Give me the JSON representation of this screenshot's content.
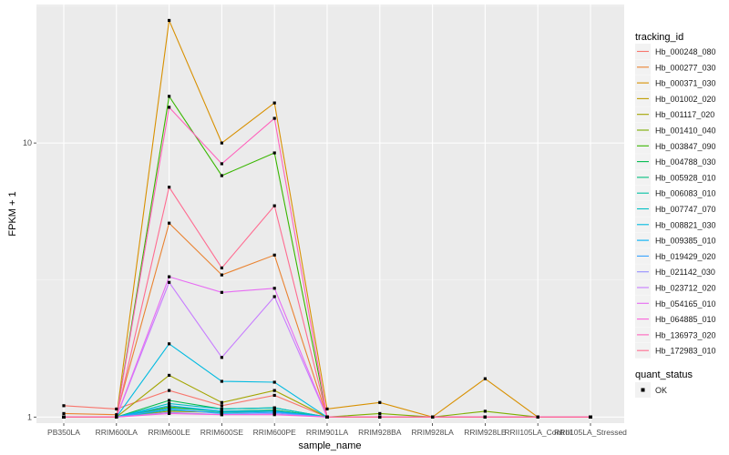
{
  "chart_data": {
    "type": "line",
    "title": "",
    "xlabel": "sample_name",
    "ylabel": "FPKM + 1",
    "y_scale": "log10",
    "ylim": [
      0.95,
      32
    ],
    "y_ticks": [
      1,
      10
    ],
    "grid": true,
    "legend_position": "right",
    "categories": [
      "PB350LA",
      "RRIM600LA",
      "RRIM600LE",
      "RRIM600SE",
      "RRIM600PE",
      "RRIM901LA",
      "RRIM928BA",
      "RRIM928LA",
      "RRIM928LE",
      "RRII105LA_Control",
      "RRII105LA_Stressed"
    ],
    "legend": {
      "tracking_title": "tracking_id",
      "status_title": "quant_status",
      "status_label": "OK"
    },
    "series": [
      {
        "name": "Hb_000248_080",
        "color": "#F8766D",
        "values": [
          1.1,
          1.07,
          1.25,
          1.1,
          1.2,
          1.0,
          1.0,
          1.0,
          1.0,
          1.0,
          1.0
        ]
      },
      {
        "name": "Hb_000277_030",
        "color": "#EA8331",
        "values": [
          1.03,
          1.02,
          5.1,
          3.3,
          3.9,
          1.0,
          1.0,
          1.0,
          1.0,
          1.0,
          1.0
        ]
      },
      {
        "name": "Hb_000371_030",
        "color": "#D89000",
        "values": [
          1.0,
          1.0,
          28,
          10,
          14,
          1.07,
          1.13,
          1.0,
          1.38,
          1.0,
          1.0
        ]
      },
      {
        "name": "Hb_001002_020",
        "color": "#C09B00",
        "values": [
          1.0,
          1.0,
          1.05,
          1.04,
          1.05,
          1.0,
          1.0,
          1.0,
          1.0,
          1.0,
          1.0
        ]
      },
      {
        "name": "Hb_001117_020",
        "color": "#A3A500",
        "values": [
          1.0,
          1.0,
          1.42,
          1.13,
          1.25,
          1.0,
          1.0,
          1.0,
          1.0,
          1.0,
          1.0
        ]
      },
      {
        "name": "Hb_001410_040",
        "color": "#7CAE00",
        "values": [
          1.0,
          1.0,
          1.09,
          1.05,
          1.06,
          1.0,
          1.03,
          1.0,
          1.05,
          1.0,
          1.0
        ]
      },
      {
        "name": "Hb_003847_090",
        "color": "#39B600",
        "values": [
          1.0,
          1.0,
          14.8,
          7.6,
          9.2,
          1.0,
          1.0,
          1.0,
          1.0,
          1.0,
          1.0
        ]
      },
      {
        "name": "Hb_004788_030",
        "color": "#00BB4E",
        "values": [
          1.0,
          1.0,
          1.15,
          1.07,
          1.08,
          1.0,
          1.0,
          1.0,
          1.0,
          1.0,
          1.0
        ]
      },
      {
        "name": "Hb_005928_010",
        "color": "#00BF7D",
        "values": [
          1.0,
          1.0,
          1.08,
          1.05,
          1.06,
          1.0,
          1.0,
          1.0,
          1.0,
          1.0,
          1.0
        ]
      },
      {
        "name": "Hb_006083_010",
        "color": "#00C1A3",
        "values": [
          1.0,
          1.0,
          1.06,
          1.04,
          1.05,
          1.0,
          1.0,
          1.0,
          1.0,
          1.0,
          1.0
        ]
      },
      {
        "name": "Hb_007747_070",
        "color": "#00BFC4",
        "values": [
          1.0,
          1.0,
          1.12,
          1.07,
          1.08,
          1.0,
          1.0,
          1.0,
          1.0,
          1.0,
          1.0
        ]
      },
      {
        "name": "Hb_008821_030",
        "color": "#00BAE0",
        "values": [
          1.0,
          1.0,
          1.85,
          1.35,
          1.34,
          1.0,
          1.0,
          1.0,
          1.0,
          1.0,
          1.0
        ]
      },
      {
        "name": "Hb_009385_010",
        "color": "#00B0F6",
        "values": [
          1.0,
          1.0,
          1.1,
          1.05,
          1.05,
          1.0,
          1.0,
          1.0,
          1.0,
          1.0,
          1.0
        ]
      },
      {
        "name": "Hb_019429_020",
        "color": "#35A2FF",
        "values": [
          1.0,
          1.0,
          1.07,
          1.03,
          1.04,
          1.0,
          1.0,
          1.0,
          1.0,
          1.0,
          1.0
        ]
      },
      {
        "name": "Hb_021142_030",
        "color": "#9590FF",
        "values": [
          1.0,
          1.0,
          1.04,
          1.02,
          1.03,
          1.0,
          1.0,
          1.0,
          1.0,
          1.0,
          1.0
        ]
      },
      {
        "name": "Hb_023712_020",
        "color": "#C77CFF",
        "values": [
          1.0,
          1.0,
          3.1,
          1.65,
          2.75,
          1.0,
          1.0,
          1.0,
          1.0,
          1.0,
          1.0
        ]
      },
      {
        "name": "Hb_054165_010",
        "color": "#E76BF3",
        "values": [
          1.0,
          1.0,
          3.25,
          2.85,
          2.95,
          1.0,
          1.0,
          1.0,
          1.0,
          1.0,
          1.0
        ]
      },
      {
        "name": "Hb_064885_010",
        "color": "#FA62DB",
        "values": [
          1.0,
          1.0,
          1.03,
          1.02,
          1.02,
          1.0,
          1.0,
          1.0,
          1.0,
          1.0,
          1.0
        ]
      },
      {
        "name": "Hb_136973_020",
        "color": "#FF62BC",
        "values": [
          1.0,
          1.0,
          13.5,
          8.4,
          12.3,
          1.0,
          1.0,
          1.0,
          1.0,
          1.0,
          1.0
        ]
      },
      {
        "name": "Hb_172983_010",
        "color": "#FF6C91",
        "values": [
          1.0,
          1.0,
          6.9,
          3.5,
          5.9,
          1.0,
          1.0,
          1.0,
          1.0,
          1.0,
          1.0
        ]
      }
    ]
  }
}
